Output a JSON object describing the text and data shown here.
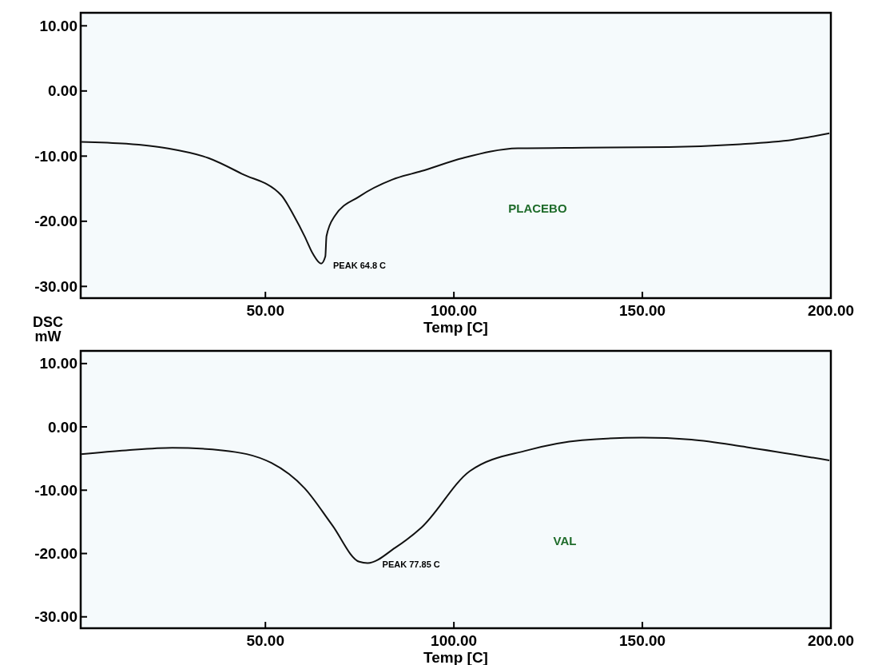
{
  "chart_data": [
    {
      "type": "line",
      "xlabel": "Temp [C]",
      "xlim": [
        1,
        200
      ],
      "ylim": [
        -31.8,
        12
      ],
      "xticks": [
        {
          "value": 50,
          "label": "50.00"
        },
        {
          "value": 100,
          "label": "100.00"
        },
        {
          "value": 150,
          "label": "150.00"
        },
        {
          "value": 200,
          "label": "200.00"
        }
      ],
      "yticks": [
        {
          "value": 10,
          "label": "10.00"
        },
        {
          "value": 0,
          "label": "0.00"
        },
        {
          "value": -10,
          "label": "-10.00"
        },
        {
          "value": -20,
          "label": "-20.00"
        },
        {
          "value": -30,
          "label": "-30.00"
        }
      ],
      "grid": false,
      "series": [
        {
          "name": "PLACEBO",
          "color": "#111111",
          "x": [
            1,
            13.1,
            23.9,
            34.9,
            43.7,
            54.2,
            57.6,
            60.4,
            62.6,
            64.8,
            65.9,
            66.2,
            68.4,
            74.9,
            83.7,
            91.4,
            102.4,
            117,
            135,
            157,
            175,
            189.8,
            199.6
          ],
          "values": [
            -7.8,
            -8.1,
            -8.8,
            -10.3,
            -12.7,
            -16.0,
            -19.2,
            -22.3,
            -25,
            -26.5,
            -25.4,
            -22.3,
            -19.2,
            -16.2,
            -13.6,
            -12.3,
            -10.3,
            -8.8,
            -8.7,
            -8.6,
            -8.2,
            -7.5,
            -6.5
          ]
        }
      ],
      "annotations": [
        {
          "text": "PEAK 64.8 C",
          "x": 64.8,
          "y": -26.5
        }
      ]
    },
    {
      "type": "line",
      "xlabel": "Temp [C]",
      "ylabel": "DSC mW",
      "xlim": [
        1,
        200
      ],
      "ylim": [
        -31.8,
        12
      ],
      "xticks": [
        {
          "value": 50,
          "label": "50.00"
        },
        {
          "value": 100,
          "label": "100.00"
        },
        {
          "value": 150,
          "label": "150.00"
        },
        {
          "value": 200,
          "label": "200.00"
        }
      ],
      "yticks": [
        {
          "value": 10,
          "label": "10.00"
        },
        {
          "value": 0,
          "label": "0.00"
        },
        {
          "value": -10,
          "label": "-10.00"
        },
        {
          "value": -20,
          "label": "-20.00"
        },
        {
          "value": -30,
          "label": "-30.00"
        }
      ],
      "grid": false,
      "series": [
        {
          "name": "VAL",
          "color": "#111111",
          "x": [
            1,
            13,
            25.3,
            38.5,
            51.6,
            60.4,
            67.7,
            74.9,
            77.1,
            84.4,
            91.4,
            104.2,
            119.5,
            134,
            150,
            163,
            177.7,
            199.6
          ],
          "values": [
            -4.3,
            -3.7,
            -3.3,
            -3.7,
            -5.7,
            -9.7,
            -15.5,
            -21.3,
            -21.5,
            -19.1,
            -15.9,
            -7.0,
            -3.7,
            -2.1,
            -1.7,
            -2.0,
            -3.2,
            -5.3
          ]
        }
      ],
      "annotations": [
        {
          "text": "PEAK 77.85 C",
          "x": 77.85,
          "y": -21.5
        }
      ]
    }
  ]
}
